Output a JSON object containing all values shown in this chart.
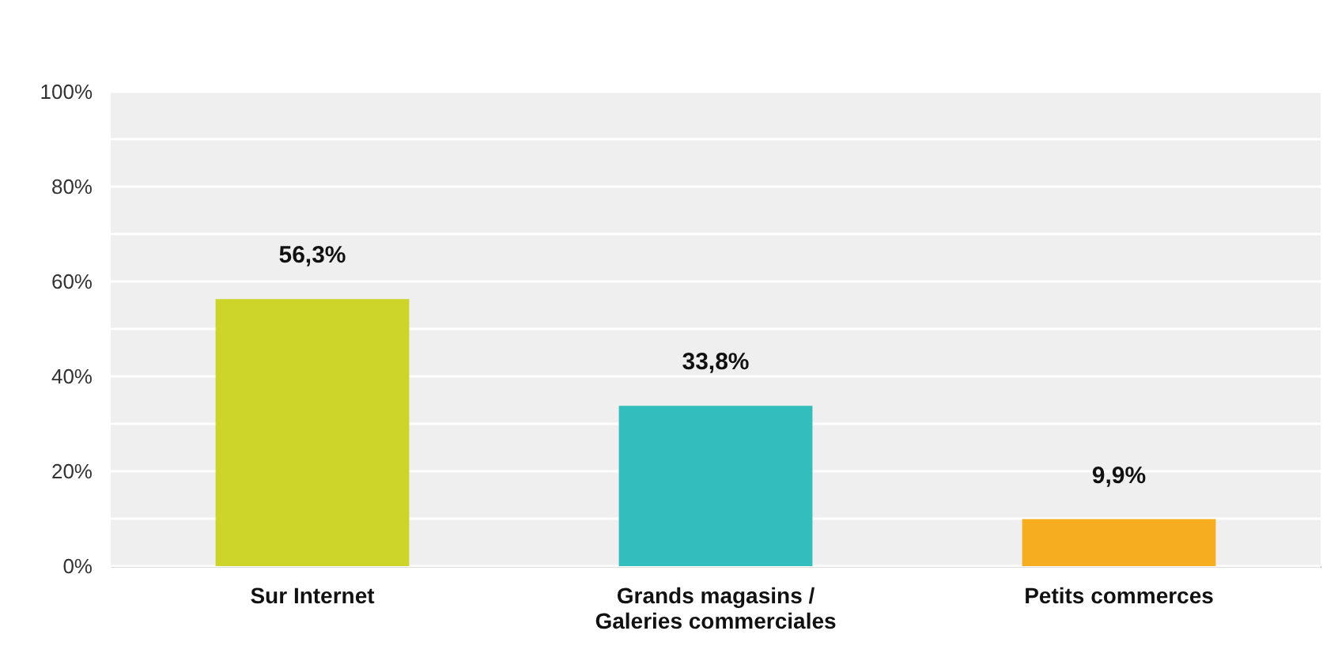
{
  "chart_data": {
    "type": "bar",
    "categories": [
      "Sur Internet",
      "Grands magasins / Galeries commerciales",
      "Petits commerces"
    ],
    "values": [
      56.3,
      33.8,
      9.9
    ],
    "colors": [
      "#cdd42a",
      "#33bdbd",
      "#f6ad1f"
    ],
    "value_labels": [
      "56,3%",
      "33,8%",
      "9,9%"
    ],
    "ylim": [
      0,
      100
    ],
    "yticks": [
      {
        "value": 0,
        "label": "0%"
      },
      {
        "value": 10,
        "label": null
      },
      {
        "value": 20,
        "label": "20%"
      },
      {
        "value": 30,
        "label": null
      },
      {
        "value": 40,
        "label": "40%"
      },
      {
        "value": 50,
        "label": null
      },
      {
        "value": 60,
        "label": "60%"
      },
      {
        "value": 70,
        "label": null
      },
      {
        "value": 80,
        "label": "80%"
      },
      {
        "value": 90,
        "label": null
      },
      {
        "value": 100,
        "label": "100%"
      }
    ],
    "grid": "y",
    "legend": false
  }
}
